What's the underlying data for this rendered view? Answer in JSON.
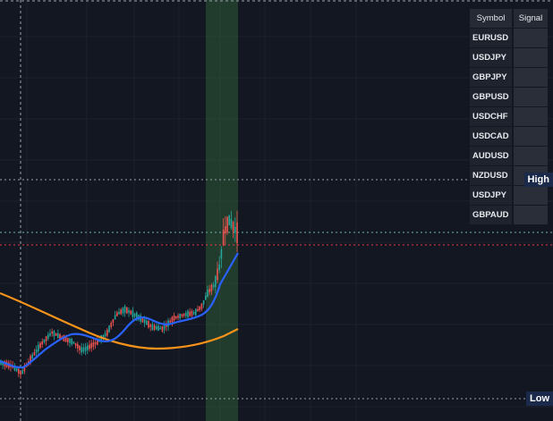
{
  "colors": {
    "background": "#131722",
    "grid": "#1e2230",
    "up_candle": "#26a69a",
    "down_candle": "#ef5350",
    "ma_fast": "#2962ff",
    "ma_slow": "#f7931a",
    "highlight_band": "#2d5a34",
    "level_line": "#9aa0ad",
    "price_line": "#f23645",
    "table_cell": "#1f232d"
  },
  "table": {
    "headers": {
      "symbol": "Symbol",
      "signal": "Signal"
    },
    "rows": [
      {
        "symbol": "EURUSD",
        "signal": ""
      },
      {
        "symbol": "USDJPY",
        "signal": ""
      },
      {
        "symbol": "GBPJPY",
        "signal": ""
      },
      {
        "symbol": "GBPUSD",
        "signal": ""
      },
      {
        "symbol": "USDCHF",
        "signal": ""
      },
      {
        "symbol": "USDCAD",
        "signal": ""
      },
      {
        "symbol": "AUDUSD",
        "signal": ""
      },
      {
        "symbol": "NZDUSD",
        "signal": ""
      },
      {
        "symbol": "USDJPY",
        "signal": ""
      },
      {
        "symbol": "GBPAUD",
        "signal": ""
      }
    ]
  },
  "labels": {
    "high": "High",
    "low": "Low"
  }
}
